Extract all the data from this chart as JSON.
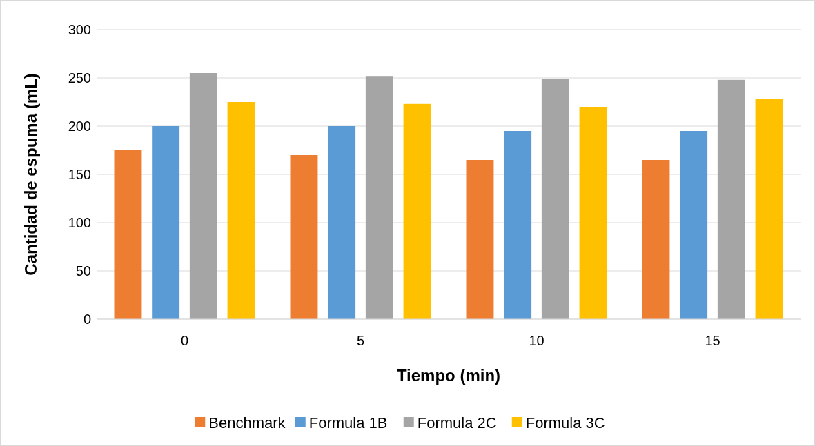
{
  "chart_data": {
    "type": "bar",
    "xlabel": "Tiempo (min)",
    "ylabel": "Cantidad de espuma (mL)",
    "categories": [
      "0",
      "5",
      "10",
      "15"
    ],
    "series": [
      {
        "name": "Benchmark",
        "color": "#ed7d31",
        "values": [
          175,
          170,
          165,
          165
        ]
      },
      {
        "name": "Formula 1B",
        "color": "#5b9bd5",
        "values": [
          200,
          200,
          195,
          195
        ]
      },
      {
        "name": "Formula 2C",
        "color": "#a5a5a5",
        "values": [
          255,
          252,
          249,
          248
        ]
      },
      {
        "name": "Formula 3C",
        "color": "#ffc000",
        "values": [
          225,
          223,
          220,
          228
        ]
      }
    ],
    "ylim": [
      0,
      300
    ],
    "yticks": [
      0,
      50,
      100,
      150,
      200,
      250,
      300
    ],
    "grid": "y",
    "legend": "bottom"
  }
}
